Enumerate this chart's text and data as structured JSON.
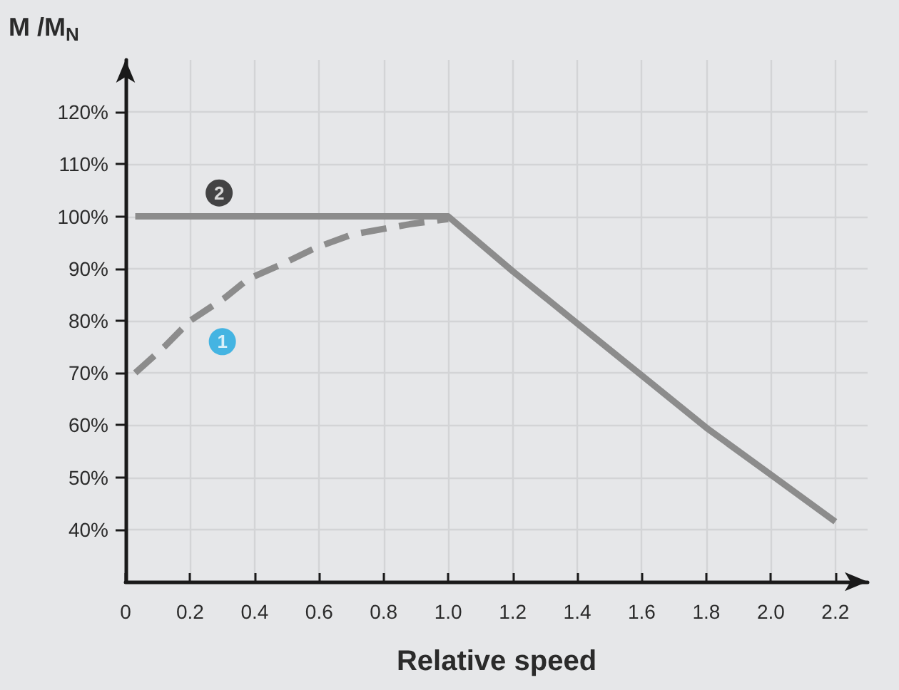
{
  "chart_data": {
    "type": "line",
    "xlabel": "Relative speed",
    "ylabel": "M /M$_{N}$",
    "xlim": [
      0,
      2.3
    ],
    "ylim": [
      30,
      130
    ],
    "xticks": [
      0,
      0.2,
      0.4,
      0.6,
      0.8,
      {
        "value": 1,
        "label": "1.0"
      },
      1.2,
      1.4,
      1.6,
      1.8,
      {
        "value": 2,
        "label": "2.0"
      },
      2.2
    ],
    "yticks": [
      {
        "value": 40,
        "label": "40%"
      },
      {
        "value": 50,
        "label": "50%"
      },
      {
        "value": 60,
        "label": "60%"
      },
      {
        "value": 70,
        "label": "70%"
      },
      {
        "value": 80,
        "label": "80%"
      },
      {
        "value": 90,
        "label": "90%"
      },
      {
        "value": 100,
        "label": "100%"
      },
      {
        "value": 110,
        "label": "110%"
      },
      {
        "value": 120,
        "label": "120%"
      }
    ],
    "grid": true,
    "marker": "none",
    "series": [
      {
        "color": "#8c8c8c",
        "line_style": "dashed",
        "x": [
          0.03,
          0.12,
          0.2,
          0.31,
          0.38,
          0.49,
          0.59,
          0.7,
          0.88,
          1.0
        ],
        "values": [
          70,
          75,
          80,
          84.5,
          88,
          91,
          94,
          96.5,
          98.5,
          99.5
        ]
      },
      {
        "color": "#8c8c8c",
        "line_style": "solid",
        "x": [
          0.03,
          1.0,
          1.2,
          1.4,
          1.6,
          1.8,
          2.0,
          2.2
        ],
        "values": [
          100,
          100,
          89.5,
          79.5,
          69.5,
          59.5,
          50.5,
          41.5
        ]
      }
    ],
    "annotations": [
      {
        "text": "1",
        "x": 0.3,
        "y": 76
      },
      {
        "text": "2",
        "x": 0.29,
        "y": 104.5
      }
    ]
  }
}
